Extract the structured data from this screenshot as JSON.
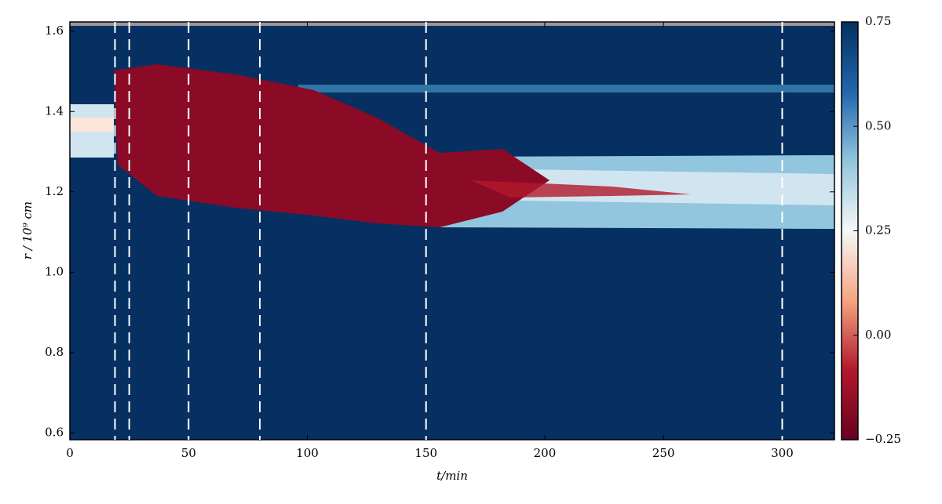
{
  "chart_data": {
    "type": "heatmap",
    "x_label": "t/min",
    "y_label": "r / 10⁹ cm",
    "xlim": [
      0,
      322
    ],
    "xticks": [
      0,
      50,
      100,
      150,
      200,
      250,
      300
    ],
    "ylim": [
      0.583,
      1.623
    ],
    "yticks": [
      0.6,
      0.8,
      {
        "value": 1.0,
        "label": "1.0"
      },
      1.2,
      1.4,
      1.6
    ],
    "vlines": [
      19,
      25,
      50,
      80,
      150,
      300
    ],
    "vline_color": "#ffffff",
    "colorbar": {
      "lim": [
        -0.25,
        0.75
      ],
      "ticks": [
        {
          "value": -0.25,
          "label": "−0.25"
        },
        {
          "value": 0,
          "label": "0.00"
        },
        0.25,
        {
          "value": 0.5,
          "label": "0.50"
        },
        0.75
      ],
      "colors": [
        "#67001f",
        "#b2182b",
        "#f4a582",
        "#f7f7f7",
        "#92c5de",
        "#2166ac",
        "#053061"
      ]
    }
  }
}
